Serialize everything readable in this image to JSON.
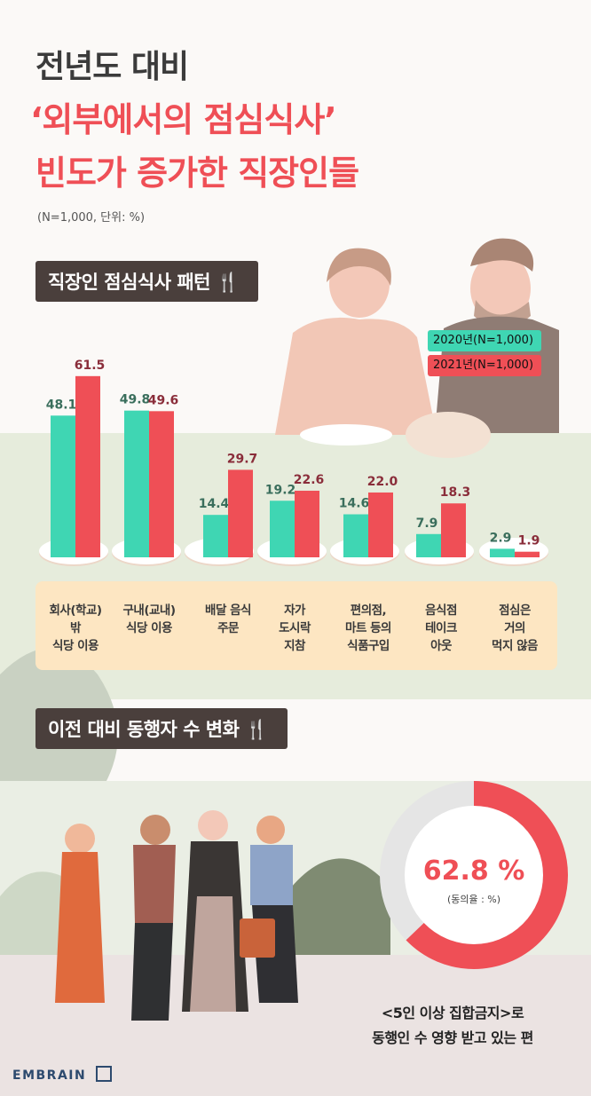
{
  "title": {
    "line1": "전년도 대비",
    "line2": "‘외부에서의 점심식사’",
    "line3": "빈도가 증가한 직장인들"
  },
  "unit_note": "(N=1,000, 단위: %)",
  "section1": {
    "title": "직장인 점심식사 패턴"
  },
  "section2": {
    "title": "이전 대비 동행자 수 변화"
  },
  "chart_data": [
    {
      "type": "bar",
      "categories": [
        "회사(학교) 밖 식당 이용",
        "구내(교내) 식당 이용",
        "배달 음식 주문",
        "자가 도시락 지참",
        "편의점, 마트 등의 식품구입",
        "음식점 테이크 아웃",
        "점심은 거의 먹지 않음"
      ],
      "category_lines": [
        [
          "회사(학교)",
          "밖",
          "식당 이용"
        ],
        [
          "구내(교내)",
          "식당 이용"
        ],
        [
          "배달 음식",
          "주문"
        ],
        [
          "자가",
          "도시락",
          "지참"
        ],
        [
          "편의점,",
          "마트 등의",
          "식품구입"
        ],
        [
          "음식점",
          "테이크",
          "아웃"
        ],
        [
          "점심은",
          "거의",
          "먹지 않음"
        ]
      ],
      "series": [
        {
          "name": "2020년(N=1,000)",
          "values": [
            48.1,
            49.8,
            14.4,
            19.2,
            14.6,
            7.9,
            2.9
          ],
          "color": "#3fd6b3",
          "label_color": "#3a6e5c"
        },
        {
          "name": "2021년(N=1,000)",
          "values": [
            61.5,
            49.6,
            29.7,
            22.6,
            22.0,
            18.3,
            1.9
          ],
          "color": "#ef4f56",
          "label_color": "#8a2d3a"
        }
      ],
      "ylim": [
        0,
        70
      ],
      "legend": "top-right"
    },
    {
      "type": "pie",
      "values": [
        62.8
      ],
      "value_label": "62.8 %",
      "sublabel": "(동의율 : %)",
      "color": "#ef4f56"
    }
  ],
  "footnote": {
    "line1": "<5인 이상 집합금지>로",
    "line2": "동행인 수 영향 받고 있는 편"
  },
  "brand": "EMBRAIN"
}
